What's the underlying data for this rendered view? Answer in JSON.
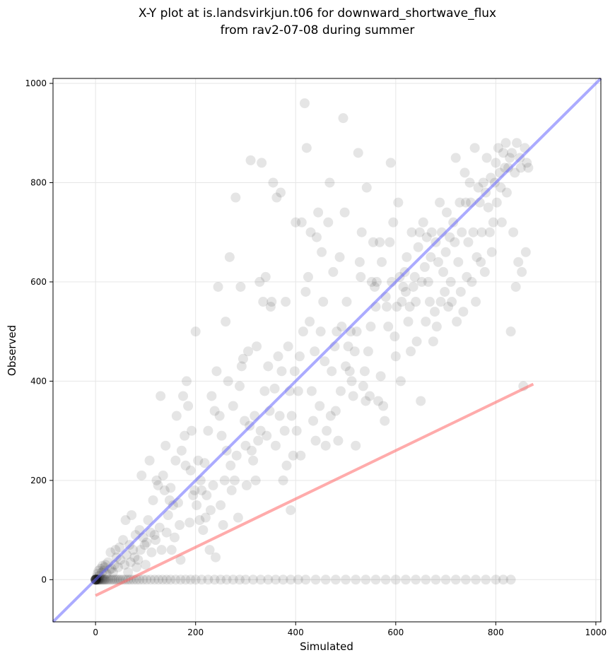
{
  "chart_data": {
    "type": "scatter",
    "title_line1": "X-Y plot at is.landsvirkjun.t06 for downward_shortwave_flux",
    "title_line2": "from rav2-07-08 during summer",
    "xlabel": "Simulated",
    "ylabel": "Observed",
    "xlim": [
      -85,
      1010
    ],
    "ylim": [
      -85,
      1010
    ],
    "xticks": [
      0,
      200,
      400,
      600,
      800,
      1000
    ],
    "yticks": [
      0,
      200,
      400,
      600,
      800,
      1000
    ],
    "grid": true,
    "point_color": "#000000",
    "point_opacity": 0.1,
    "reference_line": {
      "name": "1:1",
      "color": "#6666ff",
      "points": [
        [
          -85,
          -85
        ],
        [
          1010,
          1010
        ]
      ]
    },
    "fit_line": {
      "name": "regression",
      "color": "#ff6666",
      "points": [
        [
          0,
          -32
        ],
        [
          875,
          394
        ]
      ]
    },
    "zero_observed_x": [
      0,
      0,
      0,
      0,
      0,
      0,
      0,
      0,
      1,
      1,
      2,
      2,
      3,
      4,
      5,
      6,
      7,
      8,
      10,
      12,
      14,
      16,
      18,
      20,
      23,
      26,
      30,
      34,
      38,
      42,
      46,
      50,
      55,
      60,
      65,
      70,
      76,
      82,
      88,
      95,
      102,
      110,
      118,
      126,
      134,
      142,
      150,
      160,
      170,
      180,
      190,
      200,
      212,
      225,
      238,
      250,
      262,
      275,
      288,
      300,
      315,
      330,
      345,
      360,
      375,
      390,
      405,
      420,
      440,
      460,
      480,
      500,
      520,
      540,
      560,
      580,
      600,
      620,
      640,
      660,
      680,
      700,
      720,
      740,
      760,
      780,
      800,
      815,
      830
    ],
    "points": [
      [
        2,
        5
      ],
      [
        4,
        12
      ],
      [
        6,
        18
      ],
      [
        8,
        8
      ],
      [
        10,
        22
      ],
      [
        12,
        14
      ],
      [
        14,
        28
      ],
      [
        16,
        18
      ],
      [
        18,
        25
      ],
      [
        20,
        30
      ],
      [
        22,
        12
      ],
      [
        25,
        35
      ],
      [
        28,
        20
      ],
      [
        30,
        55
      ],
      [
        32,
        22
      ],
      [
        35,
        15
      ],
      [
        38,
        30
      ],
      [
        40,
        60
      ],
      [
        42,
        45
      ],
      [
        45,
        25
      ],
      [
        48,
        65
      ],
      [
        50,
        40
      ],
      [
        55,
        80
      ],
      [
        58,
        30
      ],
      [
        60,
        120
      ],
      [
        62,
        50
      ],
      [
        65,
        15
      ],
      [
        68,
        70
      ],
      [
        70,
        35
      ],
      [
        72,
        130
      ],
      [
        75,
        60
      ],
      [
        78,
        45
      ],
      [
        80,
        90
      ],
      [
        82,
        25
      ],
      [
        85,
        40
      ],
      [
        88,
        100
      ],
      [
        90,
        60
      ],
      [
        92,
        210
      ],
      [
        95,
        85
      ],
      [
        98,
        70
      ],
      [
        100,
        30
      ],
      [
        102,
        75
      ],
      [
        105,
        120
      ],
      [
        108,
        240
      ],
      [
        110,
        95
      ],
      [
        112,
        55
      ],
      [
        115,
        160
      ],
      [
        118,
        90
      ],
      [
        120,
        80
      ],
      [
        122,
        200
      ],
      [
        125,
        190
      ],
      [
        128,
        105
      ],
      [
        130,
        370
      ],
      [
        132,
        60
      ],
      [
        135,
        210
      ],
      [
        138,
        180
      ],
      [
        140,
        270
      ],
      [
        142,
        95
      ],
      [
        145,
        130
      ],
      [
        148,
        160
      ],
      [
        150,
        185
      ],
      [
        152,
        60
      ],
      [
        155,
        150
      ],
      [
        158,
        85
      ],
      [
        160,
        240
      ],
      [
        162,
        330
      ],
      [
        165,
        155
      ],
      [
        168,
        110
      ],
      [
        170,
        40
      ],
      [
        172,
        260
      ],
      [
        175,
        370
      ],
      [
        178,
        290
      ],
      [
        180,
        230
      ],
      [
        182,
        400
      ],
      [
        185,
        350
      ],
      [
        188,
        115
      ],
      [
        190,
        220
      ],
      [
        192,
        300
      ],
      [
        195,
        170
      ],
      [
        198,
        180
      ],
      [
        200,
        500
      ],
      [
        202,
        150
      ],
      [
        205,
        240
      ],
      [
        208,
        120
      ],
      [
        210,
        200
      ],
      [
        212,
        180
      ],
      [
        215,
        100
      ],
      [
        218,
        235
      ],
      [
        220,
        125
      ],
      [
        222,
        170
      ],
      [
        225,
        300
      ],
      [
        228,
        60
      ],
      [
        230,
        140
      ],
      [
        232,
        370
      ],
      [
        235,
        190
      ],
      [
        238,
        340
      ],
      [
        240,
        45
      ],
      [
        242,
        420
      ],
      [
        245,
        590
      ],
      [
        248,
        330
      ],
      [
        250,
        150
      ],
      [
        252,
        290
      ],
      [
        255,
        110
      ],
      [
        258,
        200
      ],
      [
        260,
        520
      ],
      [
        262,
        260
      ],
      [
        265,
        400
      ],
      [
        268,
        650
      ],
      [
        270,
        230
      ],
      [
        272,
        180
      ],
      [
        275,
        350
      ],
      [
        278,
        200
      ],
      [
        280,
        770
      ],
      [
        282,
        250
      ],
      [
        285,
        125
      ],
      [
        288,
        390
      ],
      [
        290,
        590
      ],
      [
        292,
        430
      ],
      [
        295,
        445
      ],
      [
        298,
        320
      ],
      [
        300,
        270
      ],
      [
        302,
        190
      ],
      [
        305,
        460
      ],
      [
        308,
        310
      ],
      [
        310,
        845
      ],
      [
        312,
        260
      ],
      [
        315,
        240
      ],
      [
        318,
        330
      ],
      [
        320,
        200
      ],
      [
        322,
        470
      ],
      [
        325,
        280
      ],
      [
        328,
        600
      ],
      [
        330,
        300
      ],
      [
        332,
        840
      ],
      [
        335,
        560
      ],
      [
        338,
        380
      ],
      [
        340,
        610
      ],
      [
        342,
        290
      ],
      [
        345,
        430
      ],
      [
        348,
        340
      ],
      [
        350,
        550
      ],
      [
        352,
        560
      ],
      [
        355,
        800
      ],
      [
        358,
        385
      ],
      [
        360,
        270
      ],
      [
        362,
        770
      ],
      [
        365,
        450
      ],
      [
        368,
        330
      ],
      [
        370,
        780
      ],
      [
        372,
        420
      ],
      [
        375,
        200
      ],
      [
        378,
        300
      ],
      [
        380,
        560
      ],
      [
        382,
        230
      ],
      [
        385,
        470
      ],
      [
        388,
        380
      ],
      [
        390,
        140
      ],
      [
        392,
        330
      ],
      [
        395,
        250
      ],
      [
        398,
        420
      ],
      [
        400,
        720
      ],
      [
        402,
        300
      ],
      [
        405,
        380
      ],
      [
        408,
        450
      ],
      [
        410,
        250
      ],
      [
        412,
        720
      ],
      [
        415,
        500
      ],
      [
        418,
        960
      ],
      [
        420,
        580
      ],
      [
        422,
        870
      ],
      [
        425,
        610
      ],
      [
        428,
        520
      ],
      [
        430,
        700
      ],
      [
        432,
        380
      ],
      [
        435,
        320
      ],
      [
        438,
        460
      ],
      [
        440,
        280
      ],
      [
        442,
        690
      ],
      [
        445,
        740
      ],
      [
        448,
        350
      ],
      [
        450,
        500
      ],
      [
        452,
        660
      ],
      [
        455,
        560
      ],
      [
        458,
        440
      ],
      [
        460,
        270
      ],
      [
        462,
        300
      ],
      [
        465,
        720
      ],
      [
        468,
        800
      ],
      [
        470,
        330
      ],
      [
        472,
        420
      ],
      [
        475,
        620
      ],
      [
        478,
        470
      ],
      [
        480,
        340
      ],
      [
        482,
        500
      ],
      [
        485,
        280
      ],
      [
        488,
        650
      ],
      [
        490,
        380
      ],
      [
        492,
        510
      ],
      [
        495,
        930
      ],
      [
        498,
        740
      ],
      [
        500,
        430
      ],
      [
        502,
        560
      ],
      [
        505,
        470
      ],
      [
        508,
        420
      ],
      [
        510,
        500
      ],
      [
        512,
        400
      ],
      [
        515,
        370
      ],
      [
        518,
        460
      ],
      [
        520,
        270
      ],
      [
        522,
        500
      ],
      [
        525,
        860
      ],
      [
        528,
        640
      ],
      [
        530,
        610
      ],
      [
        532,
        700
      ],
      [
        535,
        390
      ],
      [
        538,
        420
      ],
      [
        540,
        360
      ],
      [
        542,
        790
      ],
      [
        545,
        460
      ],
      [
        548,
        370
      ],
      [
        550,
        510
      ],
      [
        552,
        600
      ],
      [
        555,
        680
      ],
      [
        558,
        590
      ],
      [
        560,
        550
      ],
      [
        562,
        600
      ],
      [
        565,
        360
      ],
      [
        568,
        680
      ],
      [
        570,
        410
      ],
      [
        572,
        640
      ],
      [
        575,
        350
      ],
      [
        578,
        320
      ],
      [
        580,
        570
      ],
      [
        582,
        550
      ],
      [
        585,
        510
      ],
      [
        588,
        680
      ],
      [
        590,
        840
      ],
      [
        592,
        600
      ],
      [
        595,
        720
      ],
      [
        598,
        490
      ],
      [
        600,
        450
      ],
      [
        602,
        550
      ],
      [
        605,
        760
      ],
      [
        608,
        610
      ],
      [
        610,
        400
      ],
      [
        612,
        560
      ],
      [
        615,
        590
      ],
      [
        618,
        620
      ],
      [
        620,
        580
      ],
      [
        622,
        650
      ],
      [
        625,
        520
      ],
      [
        628,
        550
      ],
      [
        630,
        460
      ],
      [
        632,
        700
      ],
      [
        635,
        590
      ],
      [
        638,
        610
      ],
      [
        640,
        560
      ],
      [
        642,
        480
      ],
      [
        645,
        670
      ],
      [
        648,
        700
      ],
      [
        650,
        360
      ],
      [
        652,
        600
      ],
      [
        655,
        720
      ],
      [
        658,
        630
      ],
      [
        660,
        520
      ],
      [
        662,
        690
      ],
      [
        665,
        600
      ],
      [
        668,
        560
      ],
      [
        670,
        650
      ],
      [
        672,
        700
      ],
      [
        675,
        480
      ],
      [
        678,
        540
      ],
      [
        680,
        680
      ],
      [
        682,
        510
      ],
      [
        685,
        640
      ],
      [
        688,
        760
      ],
      [
        690,
        560
      ],
      [
        692,
        700
      ],
      [
        695,
        620
      ],
      [
        698,
        580
      ],
      [
        700,
        660
      ],
      [
        702,
        740
      ],
      [
        705,
        550
      ],
      [
        708,
        690
      ],
      [
        710,
        600
      ],
      [
        712,
        560
      ],
      [
        715,
        720
      ],
      [
        718,
        680
      ],
      [
        720,
        850
      ],
      [
        722,
        520
      ],
      [
        725,
        640
      ],
      [
        728,
        760
      ],
      [
        730,
        580
      ],
      [
        732,
        700
      ],
      [
        735,
        540
      ],
      [
        738,
        820
      ],
      [
        740,
        760
      ],
      [
        742,
        610
      ],
      [
        745,
        680
      ],
      [
        748,
        800
      ],
      [
        750,
        760
      ],
      [
        752,
        600
      ],
      [
        755,
        700
      ],
      [
        758,
        870
      ],
      [
        760,
        560
      ],
      [
        762,
        650
      ],
      [
        765,
        790
      ],
      [
        768,
        760
      ],
      [
        770,
        640
      ],
      [
        772,
        700
      ],
      [
        775,
        800
      ],
      [
        778,
        620
      ],
      [
        780,
        780
      ],
      [
        782,
        850
      ],
      [
        785,
        750
      ],
      [
        788,
        700
      ],
      [
        790,
        810
      ],
      [
        792,
        660
      ],
      [
        795,
        720
      ],
      [
        798,
        800
      ],
      [
        800,
        840
      ],
      [
        802,
        760
      ],
      [
        805,
        870
      ],
      [
        808,
        820
      ],
      [
        810,
        790
      ],
      [
        812,
        720
      ],
      [
        815,
        860
      ],
      [
        818,
        830
      ],
      [
        820,
        880
      ],
      [
        822,
        780
      ],
      [
        825,
        830
      ],
      [
        828,
        850
      ],
      [
        830,
        500
      ],
      [
        832,
        860
      ],
      [
        835,
        700
      ],
      [
        838,
        820
      ],
      [
        840,
        590
      ],
      [
        842,
        880
      ],
      [
        845,
        640
      ],
      [
        848,
        850
      ],
      [
        850,
        830
      ],
      [
        852,
        620
      ],
      [
        855,
        390
      ],
      [
        858,
        870
      ],
      [
        860,
        660
      ],
      [
        862,
        840
      ],
      [
        865,
        830
      ]
    ]
  }
}
